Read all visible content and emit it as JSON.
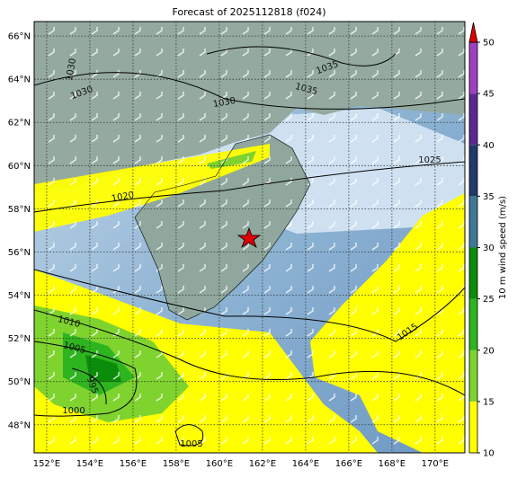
{
  "title": "Forecast of 2025112818 (f024)",
  "map": {
    "xlim": [
      151.42,
      171.38
    ],
    "ylim": [
      46.7,
      66.67
    ],
    "xticks": [
      {
        "value": 152,
        "label": "152°E"
      },
      {
        "value": 154,
        "label": "154°E"
      },
      {
        "value": 156,
        "label": "156°E"
      },
      {
        "value": 158,
        "label": "158°E"
      },
      {
        "value": 160,
        "label": "160°E"
      },
      {
        "value": 162,
        "label": "162°E"
      },
      {
        "value": 164,
        "label": "164°E"
      },
      {
        "value": 166,
        "label": "166°E"
      },
      {
        "value": 168,
        "label": "168°E"
      },
      {
        "value": 170,
        "label": "170°E"
      }
    ],
    "yticks": [
      {
        "value": 48,
        "label": "48°N"
      },
      {
        "value": 50,
        "label": "50°N"
      },
      {
        "value": 52,
        "label": "52°N"
      },
      {
        "value": 54,
        "label": "54°N"
      },
      {
        "value": 56,
        "label": "56°N"
      },
      {
        "value": 58,
        "label": "58°N"
      },
      {
        "value": 60,
        "label": "60°N"
      },
      {
        "value": 62,
        "label": "62°N"
      },
      {
        "value": 64,
        "label": "64°N"
      },
      {
        "value": 66,
        "label": "66°N"
      }
    ],
    "contour_labels": [
      "1030",
      "1030",
      "1035",
      "1035",
      "1030",
      "1025",
      "1020",
      "1015",
      "1010",
      "1005",
      "995",
      "1000",
      "1005"
    ]
  },
  "colorbar": {
    "label": "10 m wind speed (m/s)",
    "lim": [
      10,
      50
    ],
    "ticks": [
      10,
      15,
      20,
      25,
      30,
      35,
      40,
      45,
      50
    ],
    "colors": [
      "#ffff00",
      "#7fd32e",
      "#2eb41e",
      "#0b8c0b",
      "#3f7896",
      "#203a6a",
      "#5a2890",
      "#a040c0"
    ],
    "extend_color": "#e00000"
  }
}
